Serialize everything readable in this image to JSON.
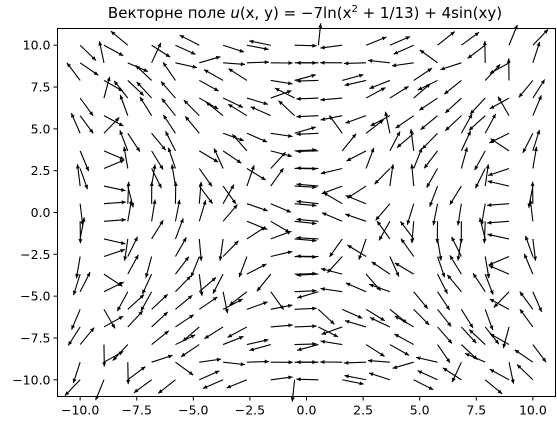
{
  "chart_data": {
    "type": "quiver",
    "title": "Векторне поле u(x, y) = −7ln(x² + 1/13) + 4sin(xy)",
    "title_parts": {
      "prefix": "Векторне поле ",
      "u": "u",
      "args": "(x, y) = −7ln(x",
      "sup2": "2",
      "mid": " + 1/13) + 4sin(xy)"
    },
    "field": {
      "u_function": "-7*ln(x^2 + 1/13) + 4*sin(x*y)",
      "grid_x_range": [
        -10,
        10
      ],
      "grid_y_range": [
        -10,
        10
      ],
      "grid_count": 20,
      "normalized": true
    },
    "xlim": [
      -11,
      11
    ],
    "ylim": [
      -11,
      11
    ],
    "xticks": [
      -10.0,
      -7.5,
      -5.0,
      -2.5,
      0.0,
      2.5,
      5.0,
      7.5,
      10.0
    ],
    "yticks": [
      -10.0,
      -7.5,
      -5.0,
      -2.5,
      0.0,
      2.5,
      5.0,
      7.5,
      10.0
    ],
    "xticklabels": [
      "−10.0",
      "−7.5",
      "−5.0",
      "−2.5",
      "0.0",
      "2.5",
      "5.0",
      "7.5",
      "10.0"
    ],
    "yticklabels": [
      "−10.0",
      "−7.5",
      "−5.0",
      "−2.5",
      "0.0",
      "2.5",
      "5.0",
      "7.5",
      "10.0"
    ],
    "xlabel": "",
    "ylabel": "",
    "grid": false,
    "color": "#000000"
  }
}
